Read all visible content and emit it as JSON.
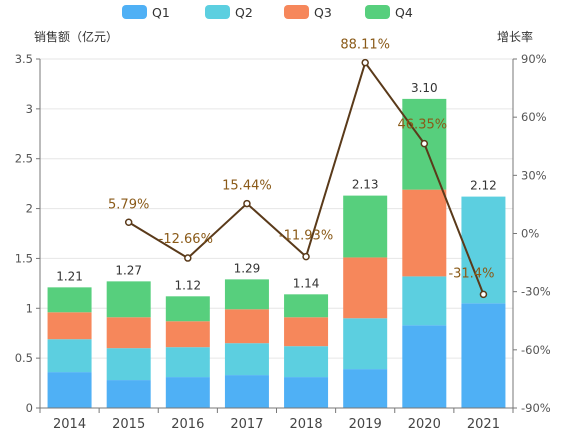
{
  "chart_data": {
    "type": "bar",
    "stacked": true,
    "y_left_label": "销售额（亿元）",
    "y_right_label": "增长率",
    "categories": [
      "2014",
      "2015",
      "2016",
      "2017",
      "2018",
      "2019",
      "2020",
      "2021"
    ],
    "series": [
      {
        "name": "Q1",
        "color": "#4fb0f5",
        "values": [
          0.36,
          0.28,
          0.31,
          0.33,
          0.31,
          0.39,
          0.83,
          1.05
        ]
      },
      {
        "name": "Q2",
        "color": "#5ccfe0",
        "values": [
          0.33,
          0.32,
          0.3,
          0.32,
          0.31,
          0.51,
          0.49,
          1.07
        ]
      },
      {
        "name": "Q3",
        "color": "#f6875b",
        "values": [
          0.27,
          0.31,
          0.26,
          0.34,
          0.29,
          0.61,
          0.87,
          0
        ]
      },
      {
        "name": "Q4",
        "color": "#57cf7d",
        "values": [
          0.25,
          0.36,
          0.25,
          0.3,
          0.23,
          0.62,
          0.91,
          0
        ]
      }
    ],
    "totals": [
      "1.21",
      "1.27",
      "1.12",
      "1.29",
      "1.14",
      "2.13",
      "3.10",
      "2.12"
    ],
    "growth": {
      "type": "line",
      "color": "#5a3a1a",
      "x": [
        "2015",
        "2016",
        "2017",
        "2018",
        "2019",
        "2020",
        "2021"
      ],
      "values": [
        5.79,
        -12.66,
        15.44,
        -11.93,
        88.11,
        46.35,
        -31.4
      ],
      "labels": [
        "5.79%",
        "-12.66%",
        "15.44%",
        "-11.93%",
        "88.11%",
        "46.35%",
        "-31.4%"
      ]
    },
    "y_left": {
      "min": 0,
      "max": 3.5,
      "ticks": [
        "0",
        "0.5",
        "1",
        "1.5",
        "2",
        "2.5",
        "3",
        "3.5"
      ]
    },
    "y_right": {
      "min": -90,
      "max": 90,
      "ticks": [
        "-90%",
        "-60%",
        "-30%",
        "0%",
        "30%",
        "60%",
        "90%"
      ]
    },
    "grid": true,
    "legend": "top-left"
  }
}
